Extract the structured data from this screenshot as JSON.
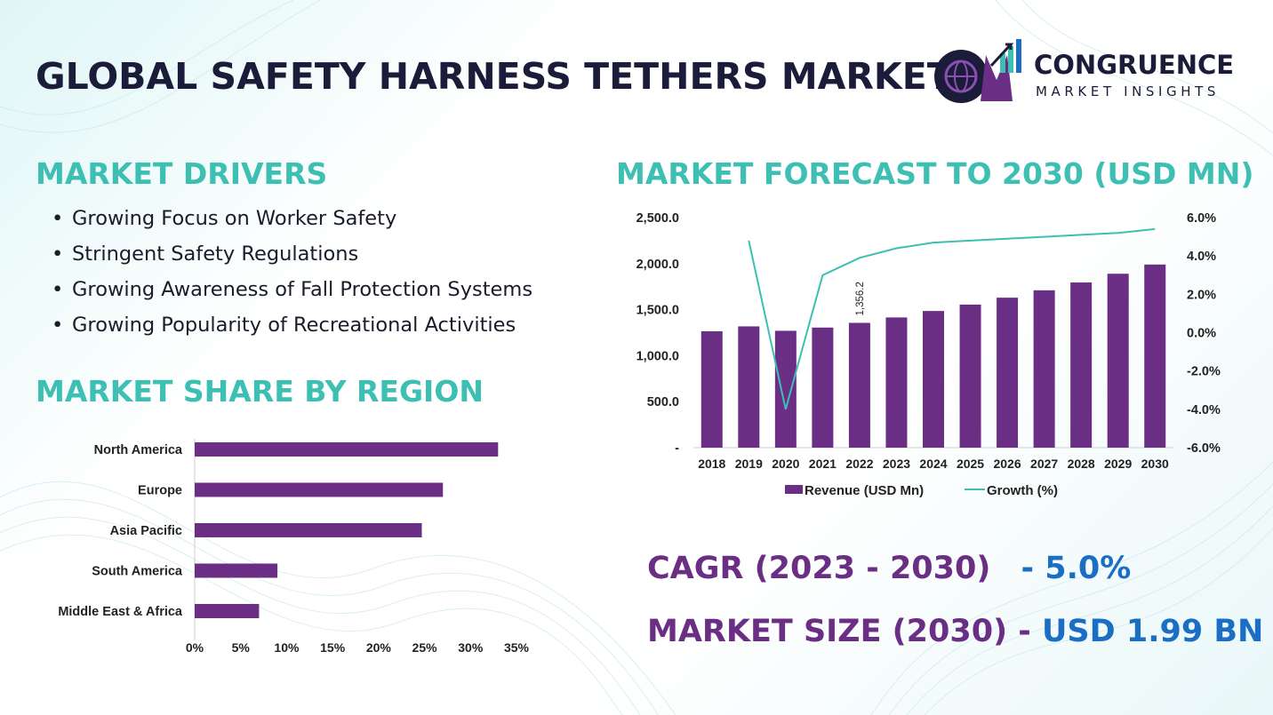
{
  "title": "GLOBAL SAFETY HARNESS TETHERS MARKET",
  "logo": {
    "name": "CONGRUENCE",
    "subtitle": "MARKET INSIGHTS",
    "mark": "CM",
    "icon": "globe-bar-chart-logo-icon"
  },
  "colors": {
    "accent": "#3dbfb3",
    "bar": "#6b2e85",
    "line": "#3dbfb3",
    "stat_value": "#1a6fc4",
    "title": "#1b1b3a"
  },
  "drivers": {
    "heading": "MARKET DRIVERS",
    "items": [
      "Growing Focus on Worker Safety",
      "Stringent Safety Regulations",
      "Growing Awareness of Fall Protection Systems",
      "Growing Popularity of Recreational  Activities"
    ]
  },
  "share_heading": "MARKET SHARE BY REGION",
  "forecast_heading": "MARKET FORECAST TO 2030 (USD MN)",
  "stats": {
    "cagr_label": "CAGR (2023 - 2030)",
    "cagr_value": "- 5.0%",
    "size_label": "MARKET SIZE (2030) -",
    "size_value": "USD 1.99 BN"
  },
  "chart_data": [
    {
      "type": "bar",
      "orientation": "horizontal",
      "categories": [
        "North America",
        "Europe",
        "Asia Pacific",
        "South America",
        "Middle East & Africa"
      ],
      "values": [
        33,
        27,
        24.7,
        9,
        7
      ],
      "xlim": [
        0,
        35
      ],
      "xticks": [
        "0%",
        "5%",
        "10%",
        "15%",
        "20%",
        "25%",
        "30%",
        "35%"
      ],
      "grid": false
    },
    {
      "type": "bar",
      "categories": [
        "2018",
        "2019",
        "2020",
        "2021",
        "2022",
        "2023",
        "2024",
        "2025",
        "2026",
        "2027",
        "2028",
        "2029",
        "2030"
      ],
      "series": [
        {
          "name": "Revenue (USD Mn)",
          "kind": "bar",
          "axis": "left",
          "values": [
            1265,
            1318,
            1270,
            1305,
            1356.2,
            1415,
            1485,
            1555,
            1630,
            1710,
            1795,
            1890,
            1990
          ]
        },
        {
          "name": "Growth (%)",
          "kind": "line",
          "axis": "right",
          "values": [
            null,
            4.8,
            -4.0,
            3.0,
            3.9,
            4.4,
            4.7,
            4.8,
            4.9,
            5.0,
            5.1,
            5.2,
            5.4
          ]
        }
      ],
      "ylim_left": [
        0,
        2500
      ],
      "yticks_left": [
        "-",
        "500.0",
        "1,000.0",
        "1,500.0",
        "2,000.0",
        "2,500.0"
      ],
      "ylim_right": [
        -6,
        6
      ],
      "yticks_right": [
        "-6.0%",
        "-4.0%",
        "-2.0%",
        "0.0%",
        "2.0%",
        "4.0%",
        "6.0%"
      ],
      "data_labels": [
        {
          "category": "2022",
          "label": "1,356.2"
        }
      ],
      "legend": "bottom",
      "grid": false
    }
  ]
}
